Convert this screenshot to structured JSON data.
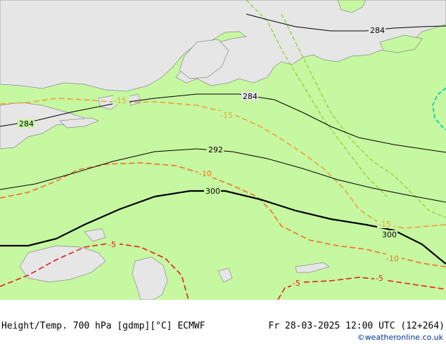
{
  "footer": {
    "left": "Height/Temp. 700 hPa [gdmp][°C] ECMWF",
    "right": "Fr 28-03-2025 12:00 UTC (12+264)",
    "credit": "©weatheronline.co.uk"
  },
  "map": {
    "colors": {
      "background_sea": "#e8e8e8",
      "land_lowlevel": "#c6f7a1",
      "ice": "#e6e6e6",
      "height_contour": "#000000",
      "temp_minus15": "#f0a040",
      "temp_minus10": "#f07030",
      "temp_minus5": "#e02020",
      "border_green": "#9acd32",
      "border_cyan": "#00c8b4"
    },
    "height_labels": [
      "284",
      "284",
      "284",
      "292",
      "300",
      "300"
    ],
    "temp_labels": [
      "-15",
      "-15",
      "-15",
      "-10",
      "-10",
      "-5",
      "-5",
      "-5"
    ]
  }
}
